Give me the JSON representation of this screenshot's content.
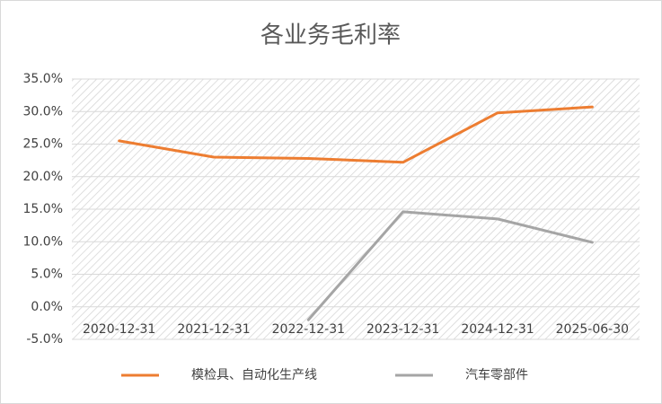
{
  "chart_data": {
    "type": "line",
    "title": "各业务毛利率",
    "categories": [
      "2020-12-31",
      "2021-12-31",
      "2022-12-31",
      "2023-12-31",
      "2024-12-31",
      "2025-06-30"
    ],
    "series": [
      {
        "name": "模检具、自动化生产线",
        "color": "#ed7d31",
        "values": [
          25.5,
          23.0,
          22.8,
          22.2,
          29.8,
          30.7
        ]
      },
      {
        "name": "汽车零部件",
        "color": "#a5a5a5",
        "values": [
          null,
          null,
          -2.0,
          14.6,
          13.5,
          9.9
        ]
      }
    ],
    "ylim": [
      -5,
      35
    ],
    "yticks": [
      {
        "value": -5,
        "label": "-5.0%"
      },
      {
        "value": 0,
        "label": "0.0%"
      },
      {
        "value": 5,
        "label": "5.0%"
      },
      {
        "value": 10,
        "label": "10.0%"
      },
      {
        "value": 15,
        "label": "15.0%"
      },
      {
        "value": 20,
        "label": "20.0%"
      },
      {
        "value": 25,
        "label": "25.0%"
      },
      {
        "value": 30,
        "label": "30.0%"
      },
      {
        "value": 35,
        "label": "35.0%"
      }
    ],
    "grid": true
  }
}
